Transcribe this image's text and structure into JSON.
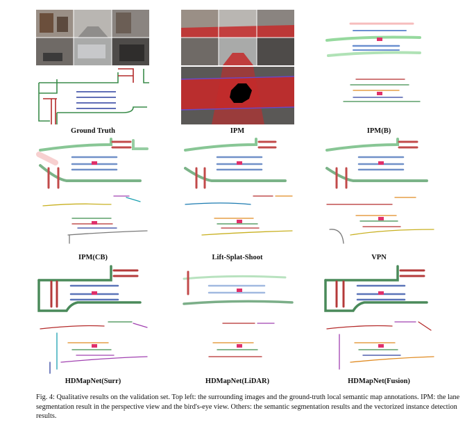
{
  "figure": {
    "labels": {
      "ground_truth": "Ground Truth",
      "ipm": "IPM",
      "ipm_b": "IPM(B)",
      "ipm_cb": "IPM(CB)",
      "lss": "Lift-Splat-Shoot",
      "vpn": "VPN",
      "hdmap_surr": "HDMapNet(Surr)",
      "hdmap_lidar": "HDMapNet(LiDAR)",
      "hdmap_fusion": "HDMapNet(Fusion)"
    },
    "caption": "Fig. 4: Qualitative results on the validation set. Top left: the surrounding images and the ground-truth local semantic map annotations. IPM: the lane segmentation result in the perspective view and the bird's-eye view. Others: the semantic segmentation results and the vectorized instance detection results.",
    "colors": {
      "road_boundary": "#3a8c4a",
      "lane_divider": "#b42a2a",
      "ped_crossing": "#2c3f9e",
      "car": "#e0306a"
    }
  }
}
